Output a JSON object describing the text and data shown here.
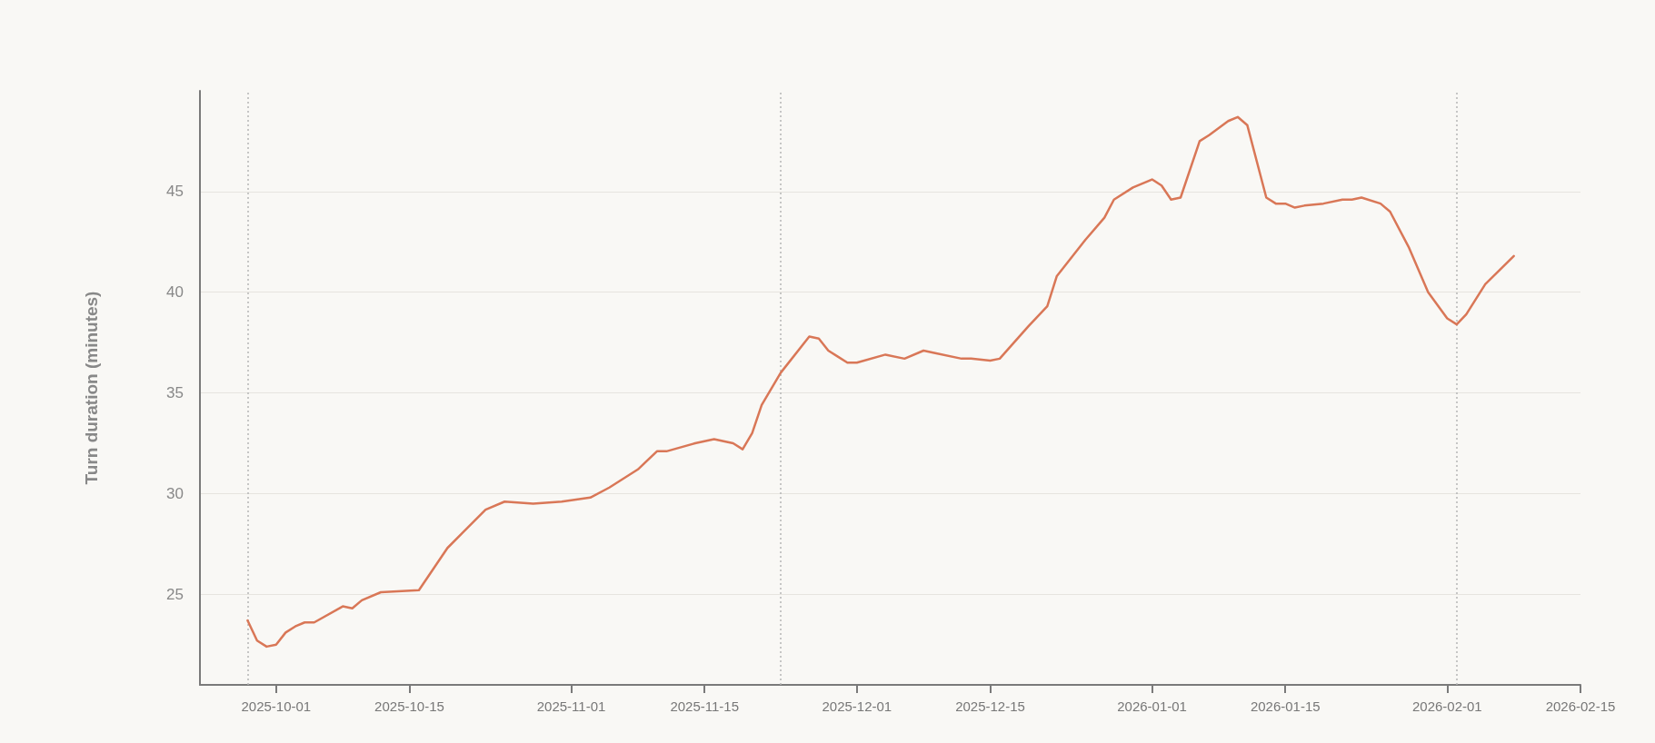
{
  "chart_data": {
    "type": "line",
    "ylabel": "Turn duration (minutes)",
    "x": [
      "2025-09-28",
      "2025-09-29",
      "2025-09-30",
      "2025-10-01",
      "2025-10-02",
      "2025-10-03",
      "2025-10-04",
      "2025-10-05",
      "2025-10-08",
      "2025-10-09",
      "2025-10-10",
      "2025-10-12",
      "2025-10-16",
      "2025-10-19",
      "2025-10-23",
      "2025-10-25",
      "2025-10-28",
      "2025-10-31",
      "2025-11-03",
      "2025-11-05",
      "2025-11-08",
      "2025-11-10",
      "2025-11-11",
      "2025-11-14",
      "2025-11-16",
      "2025-11-18",
      "2025-11-19",
      "2025-11-20",
      "2025-11-21",
      "2025-11-23",
      "2025-11-26",
      "2025-11-27",
      "2025-11-28",
      "2025-11-29",
      "2025-11-30",
      "2025-12-01",
      "2025-12-04",
      "2025-12-06",
      "2025-12-08",
      "2025-12-09",
      "2025-12-12",
      "2025-12-13",
      "2025-12-15",
      "2025-12-16",
      "2025-12-19",
      "2025-12-21",
      "2025-12-22",
      "2025-12-25",
      "2025-12-27",
      "2025-12-28",
      "2025-12-30",
      "2026-01-01",
      "2026-01-02",
      "2026-01-03",
      "2026-01-04",
      "2026-01-06",
      "2026-01-07",
      "2026-01-09",
      "2026-01-10",
      "2026-01-11",
      "2026-01-13",
      "2026-01-14",
      "2026-01-15",
      "2026-01-16",
      "2026-01-17",
      "2026-01-19",
      "2026-01-21",
      "2026-01-22",
      "2026-01-23",
      "2026-01-25",
      "2026-01-26",
      "2026-01-28",
      "2026-01-30",
      "2026-02-01",
      "2026-02-02",
      "2026-02-03",
      "2026-02-05",
      "2026-02-08"
    ],
    "series": [
      {
        "color": "#d97757",
        "values": [
          23.7,
          22.7,
          22.4,
          22.5,
          23.1,
          23.4,
          23.6,
          23.6,
          24.4,
          24.3,
          24.7,
          25.1,
          25.2,
          27.3,
          29.2,
          29.6,
          29.5,
          29.6,
          29.8,
          30.3,
          31.2,
          32.1,
          32.1,
          32.5,
          32.7,
          32.5,
          32.2,
          33.0,
          34.4,
          36.0,
          37.8,
          37.7,
          37.1,
          36.8,
          36.5,
          36.5,
          36.9,
          36.7,
          37.1,
          37.0,
          36.7,
          36.7,
          36.6,
          36.7,
          38.3,
          39.3,
          40.8,
          42.6,
          43.7,
          44.6,
          45.2,
          45.6,
          45.3,
          44.6,
          44.7,
          47.5,
          47.8,
          48.5,
          48.7,
          48.3,
          44.7,
          44.4,
          44.4,
          44.2,
          44.3,
          44.4,
          44.6,
          44.6,
          44.7,
          44.4,
          44.0,
          42.2,
          40.0,
          38.7,
          38.4,
          38.9,
          40.4,
          41.8
        ]
      }
    ],
    "xlim": [
      "2025-09-23",
      "2026-02-15"
    ],
    "xticks": [
      {
        "value": "2025-10-01",
        "label": "2025-10-01"
      },
      {
        "value": "2025-10-15",
        "label": "2025-10-15"
      },
      {
        "value": "2025-11-01",
        "label": "2025-11-01"
      },
      {
        "value": "2025-11-15",
        "label": "2025-11-15"
      },
      {
        "value": "2025-12-01",
        "label": "2025-12-01"
      },
      {
        "value": "2025-12-15",
        "label": "2025-12-15"
      },
      {
        "value": "2026-01-01",
        "label": "2026-01-01"
      },
      {
        "value": "2026-01-15",
        "label": "2026-01-15"
      },
      {
        "value": "2026-02-01",
        "label": "2026-02-01"
      },
      {
        "value": "2026-02-15",
        "label": "2026-02-15"
      }
    ],
    "ylim": [
      20.5,
      50
    ],
    "yticks": [
      25,
      30,
      35,
      40,
      45
    ],
    "grid": "y",
    "marker": "none",
    "ref_lines": [
      {
        "axis": "x",
        "value": "2025-09-28",
        "color": "#b5b5b5",
        "line_style": "dotted"
      },
      {
        "axis": "x",
        "value": "2025-11-23",
        "color": "#b5b5b5",
        "line_style": "dotted"
      },
      {
        "axis": "x",
        "value": "2026-02-02",
        "color": "#b5b5b5",
        "line_style": "dotted"
      }
    ]
  }
}
